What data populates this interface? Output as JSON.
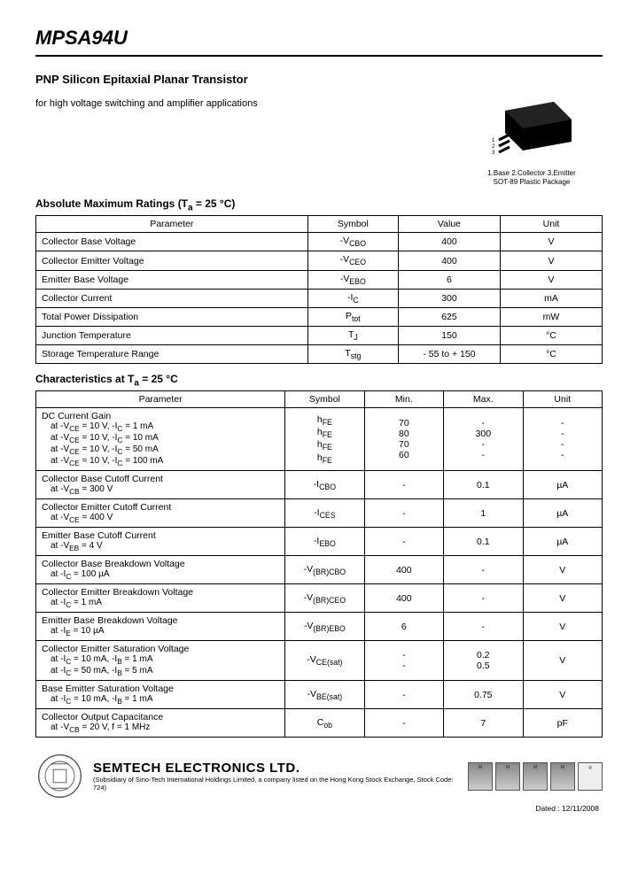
{
  "header": {
    "part_number": "MPSA94U",
    "subtitle": "PNP Silicon Epitaxial Planar Transistor",
    "description": "for high voltage switching and amplifier applications"
  },
  "package": {
    "pin_caption": "1.Base 2.Collector 3.Emitter",
    "type_caption": "SOT-89 Plastic Package"
  },
  "ratings": {
    "title": "Absolute Maximum Ratings (T",
    "title_sub": "a",
    "title_rest": " = 25 °C)",
    "columns": [
      "Parameter",
      "Symbol",
      "Value",
      "Unit"
    ],
    "rows": [
      {
        "param": "Collector Base Voltage",
        "symbol": "-V",
        "sym_sub": "CBO",
        "value": "400",
        "unit": "V"
      },
      {
        "param": "Collector Emitter Voltage",
        "symbol": "-V",
        "sym_sub": "CEO",
        "value": "400",
        "unit": "V"
      },
      {
        "param": "Emitter Base Voltage",
        "symbol": "-V",
        "sym_sub": "EBO",
        "value": "6",
        "unit": "V"
      },
      {
        "param": "Collector Current",
        "symbol": "-I",
        "sym_sub": "C",
        "value": "300",
        "unit": "mA"
      },
      {
        "param": "Total Power Dissipation",
        "symbol": "P",
        "sym_sub": "tot",
        "value": "625",
        "unit": "mW"
      },
      {
        "param": "Junction Temperature",
        "symbol": "T",
        "sym_sub": "J",
        "value": "150",
        "unit": "°C"
      },
      {
        "param": "Storage Temperature Range",
        "symbol": "T",
        "sym_sub": "stg",
        "value": "- 55 to + 150",
        "unit": "°C"
      }
    ]
  },
  "characteristics": {
    "title": "Characteristics at T",
    "title_sub": "a",
    "title_rest": " = 25 °C",
    "columns": [
      "Parameter",
      "Symbol",
      "Min.",
      "Max.",
      "Unit"
    ],
    "rows": [
      {
        "param_main": "DC Current Gain",
        "param_lines": [
          "at -V_CE = 10 V, -I_C = 1 mA",
          "at -V_CE = 10 V, -I_C = 10 mA",
          "at -V_CE = 10 V, -I_C = 50 mA",
          "at -V_CE = 10 V, -I_C = 100 mA"
        ],
        "symbol_lines": [
          "h_FE",
          "h_FE",
          "h_FE",
          "h_FE"
        ],
        "min_lines": [
          "70",
          "80",
          "70",
          "60"
        ],
        "max_lines": [
          "-",
          "300",
          "-",
          "-"
        ],
        "unit_lines": [
          "-",
          "-",
          "-",
          "-"
        ]
      },
      {
        "param_main": "Collector Base Cutoff Current",
        "param_lines": [
          "at -V_CB = 300 V"
        ],
        "symbol": "-I_CBO",
        "min": "-",
        "max": "0.1",
        "unit": "µA"
      },
      {
        "param_main": "Collector Emitter Cutoff Current",
        "param_lines": [
          "at -V_CE = 400 V"
        ],
        "symbol": "-I_CES",
        "min": "-",
        "max": "1",
        "unit": "µA"
      },
      {
        "param_main": "Emitter Base Cutoff Current",
        "param_lines": [
          "at -V_EB = 4 V"
        ],
        "symbol": "-I_EBO",
        "min": "-",
        "max": "0.1",
        "unit": "µA"
      },
      {
        "param_main": "Collector Base Breakdown Voltage",
        "param_lines": [
          "at -I_C = 100 µA"
        ],
        "symbol": "-V_(BR)CBO",
        "min": "400",
        "max": "-",
        "unit": "V"
      },
      {
        "param_main": "Collector Emitter Breakdown Voltage",
        "param_lines": [
          "at -I_C = 1 mA"
        ],
        "symbol": "-V_(BR)CEO",
        "min": "400",
        "max": "-",
        "unit": "V"
      },
      {
        "param_main": "Emitter Base Breakdown Voltage",
        "param_lines": [
          "at -I_E = 10 µA"
        ],
        "symbol": "-V_(BR)EBO",
        "min": "6",
        "max": "-",
        "unit": "V"
      },
      {
        "param_main": "Collector Emitter Saturation Voltage",
        "param_lines": [
          "at -I_C = 10 mA, -I_B = 1 mA",
          "at -I_C = 50 mA, -I_B = 5 mA"
        ],
        "symbol": "-V_CE(sat)",
        "min_lines": [
          "-",
          "-"
        ],
        "max_lines": [
          "0.2",
          "0.5"
        ],
        "unit": "V"
      },
      {
        "param_main": "Base Emitter Saturation Voltage",
        "param_lines": [
          "at -I_C = 10 mA, -I_B = 1 mA"
        ],
        "symbol": "-V_BE(sat)",
        "min": "-",
        "max": "0.75",
        "unit": "V"
      },
      {
        "param_main": "Collector Output Capacitance",
        "param_lines": [
          "at -V_CB = 20 V, f = 1 MHz"
        ],
        "symbol": "C_ob",
        "min": "-",
        "max": "7",
        "unit": "pF"
      }
    ]
  },
  "footer": {
    "company": "SEMTECH ELECTRONICS LTD.",
    "sub": "(Subsidiary of Sino-Tech International Holdings Limited, a company listed on the Hong Kong Stock Exchange, Stock Code: 724)",
    "date": "Dated : 12/11/2008"
  }
}
